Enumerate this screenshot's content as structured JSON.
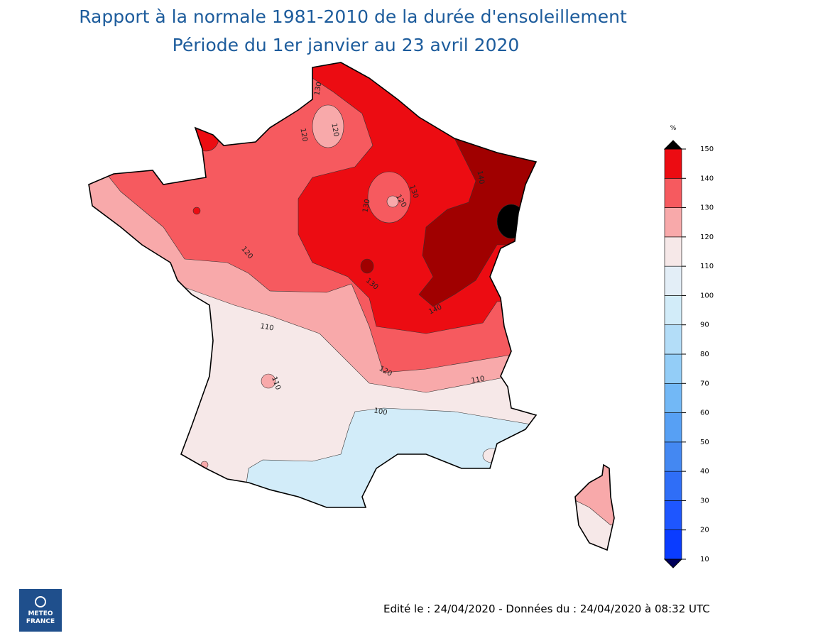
{
  "title": {
    "line1": "Rapport à la normale 1981-2010 de la durée d'ensoleillement",
    "line2": "Période du 1er janvier au 23 avril 2020"
  },
  "colorbar": {
    "unit": "%",
    "ticks": [
      10,
      20,
      30,
      40,
      50,
      60,
      70,
      80,
      90,
      100,
      110,
      120,
      130,
      140,
      150
    ],
    "colors": [
      "#0a3cff",
      "#1e56ff",
      "#2f6ef7",
      "#4488f2",
      "#57a0f4",
      "#72b8f6",
      "#93cdf7",
      "#b3ddf8",
      "#d2ecf9",
      "#e3eef7",
      "#f6e8e8",
      "#f8a9aa",
      "#f65a5f",
      "#ec0c12",
      "#a00000"
    ],
    "under_color": "#00005a",
    "over_color": "#000000"
  },
  "contour_labels": [
    130,
    120,
    120,
    140,
    130,
    120,
    130,
    120,
    130,
    140,
    110,
    110,
    120,
    110,
    100
  ],
  "footer": "Edité le : 24/04/2020 - Données du : 24/04/2020 à 08:32 UTC",
  "logo": {
    "line1": "METEO",
    "line2": "FRANCE"
  }
}
